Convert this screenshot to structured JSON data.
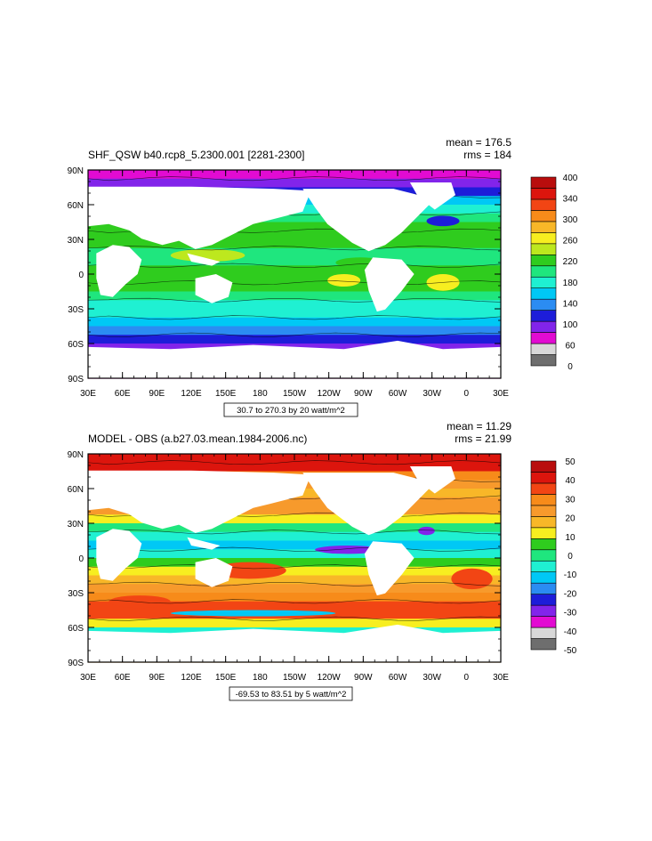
{
  "colors": {
    "land": "#ffffff",
    "frame": "#000000",
    "top_scale": [
      "#6e6e6e",
      "#d8d8d8",
      "#e20bd2",
      "#8224ea",
      "#1d1dd9",
      "#2b8cf2",
      "#00c8f5",
      "#1ff0d2",
      "#1fe67e",
      "#2fcc1e",
      "#bde81e",
      "#f7ee20",
      "#f8b728",
      "#f78b1a",
      "#f24514",
      "#dc150d",
      "#b90d0d"
    ],
    "bottom_scale": [
      "#6e6e6e",
      "#d8d8d8",
      "#e20bd2",
      "#8224ea",
      "#1d1dd9",
      "#2b8cf2",
      "#00c8f5",
      "#1ff0d2",
      "#1fe67e",
      "#2fcc1e",
      "#f7ee20",
      "#f8b728",
      "#f79a2c",
      "#f78b1a",
      "#f24514",
      "#dc150d",
      "#b90d0d"
    ]
  },
  "panels": [
    {
      "id": "top",
      "title": "SHF_QSW b40.rcp8_5.2300.001 [2281-2300]",
      "mean": "mean = 176.5",
      "rms": "rms = 184",
      "range_label": "30.7 to 270.3 by 20 watt/m^2",
      "colorbar_labels": [
        "400",
        "340",
        "300",
        "260",
        "220",
        "180",
        "140",
        "100",
        "60",
        "0"
      ]
    },
    {
      "id": "bottom",
      "title": "MODEL - OBS (a.b27.03.mean.1984-2006.nc)",
      "mean": "mean = 11.29",
      "rms": "rms = 21.99",
      "range_label": "-69.53 to 83.51 by 5 watt/m^2",
      "colorbar_labels": [
        "50",
        "40",
        "30",
        "20",
        "10",
        "0",
        "-10",
        "-20",
        "-30",
        "-40",
        "-50"
      ]
    }
  ],
  "lat_ticks": [
    "90N",
    "60N",
    "30N",
    "0",
    "30S",
    "60S",
    "90S"
  ],
  "lon_ticks": [
    "30E",
    "60E",
    "90E",
    "120E",
    "150E",
    "180",
    "150W",
    "120W",
    "90W",
    "60W",
    "30W",
    "0",
    "30E"
  ]
}
